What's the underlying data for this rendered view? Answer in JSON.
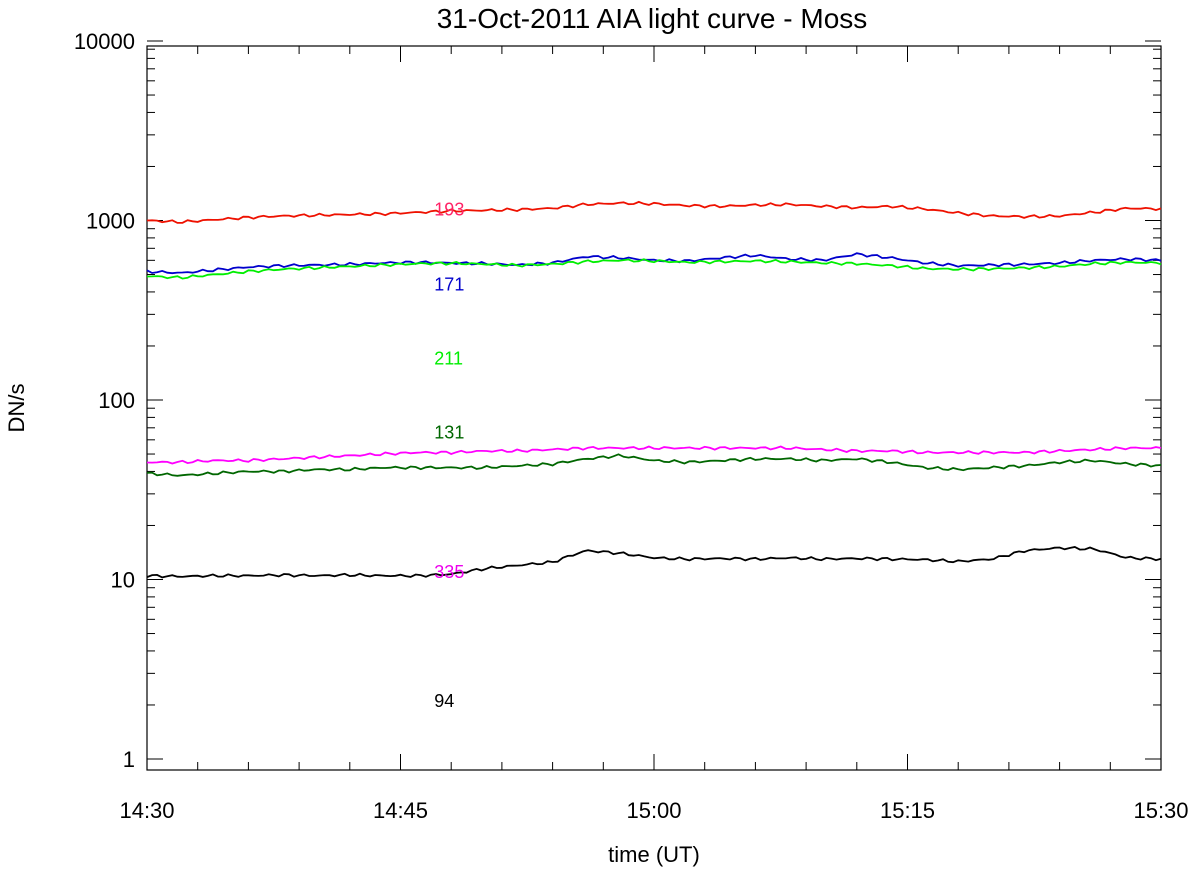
{
  "chart_data": {
    "type": "line",
    "title": "31-Oct-2011 AIA light curve - Moss",
    "xlabel": "time (UT)",
    "ylabel": "DN/s",
    "xlim": [
      "14:30",
      "15:30"
    ],
    "ylim": [
      1,
      10000
    ],
    "yscale": "log",
    "x_ticks": [
      "14:30",
      "14:45",
      "15:00",
      "15:15",
      "15:30"
    ],
    "y_ticks": [
      "1",
      "10",
      "100",
      "1000",
      "10000"
    ],
    "legend_labels_at": "14:47",
    "x": [
      "14:30",
      "14:32",
      "14:34",
      "14:36",
      "14:38",
      "14:40",
      "14:42",
      "14:44",
      "14:46",
      "14:48",
      "14:50",
      "14:52",
      "14:54",
      "14:56",
      "14:58",
      "15:00",
      "15:02",
      "15:04",
      "15:06",
      "15:08",
      "15:10",
      "15:12",
      "15:14",
      "15:16",
      "15:18",
      "15:20",
      "15:22",
      "15:24",
      "15:26",
      "15:28",
      "15:30"
    ],
    "series": [
      {
        "name": "193",
        "color": "#ee1100",
        "label_color": "#ff2266",
        "label_value": 1150,
        "values": [
          1000,
          980,
          1010,
          1040,
          1060,
          1070,
          1080,
          1090,
          1110,
          1130,
          1140,
          1150,
          1170,
          1230,
          1250,
          1240,
          1210,
          1200,
          1220,
          1230,
          1200,
          1180,
          1200,
          1160,
          1100,
          1060,
          1050,
          1060,
          1110,
          1170,
          1160
        ]
      },
      {
        "name": "171",
        "color": "#0000cc",
        "label_color": "#0000cc",
        "label_value": 440,
        "values": [
          520,
          510,
          530,
          550,
          560,
          565,
          570,
          580,
          585,
          580,
          575,
          565,
          580,
          630,
          620,
          600,
          595,
          620,
          640,
          610,
          600,
          650,
          620,
          580,
          560,
          565,
          570,
          580,
          600,
          610,
          600
        ]
      },
      {
        "name": "211",
        "color": "#00ee00",
        "label_color": "#00ee00",
        "label_value": 170,
        "values": [
          490,
          480,
          500,
          520,
          535,
          545,
          555,
          565,
          575,
          578,
          572,
          562,
          572,
          590,
          600,
          595,
          585,
          590,
          595,
          590,
          580,
          575,
          560,
          540,
          535,
          538,
          545,
          555,
          575,
          585,
          580
        ]
      },
      {
        "name": "131",
        "color": "#006600",
        "label_color": "#006600",
        "label_value": 66,
        "values": [
          39,
          38,
          39,
          40,
          40,
          41,
          41,
          42,
          42,
          42,
          42,
          43,
          44,
          47,
          49,
          46,
          45,
          46,
          47,
          47,
          46,
          47,
          45,
          42,
          41,
          42,
          43,
          45,
          46,
          44,
          43
        ]
      },
      {
        "name": "335",
        "color": "#ff00ff",
        "label_color": "#ee00ee",
        "label_value": 11,
        "values": [
          45,
          45,
          46,
          46,
          47,
          48,
          49,
          50,
          51,
          51,
          52,
          52,
          53,
          54,
          54,
          54,
          54,
          54,
          54,
          54,
          53,
          52,
          52,
          51,
          51,
          51,
          51,
          52,
          53,
          54,
          54
        ]
      },
      {
        "name": "94",
        "color": "#000000",
        "label_color": "#000000",
        "label_value": 2.1,
        "values": [
          10.5,
          10.4,
          10.5,
          10.5,
          10.6,
          10.5,
          10.6,
          10.5,
          10.5,
          10.7,
          11.5,
          12.0,
          12.5,
          14.5,
          14.0,
          13.2,
          13.0,
          13.1,
          13.0,
          13.2,
          13.0,
          13.1,
          13.0,
          12.9,
          12.6,
          13.0,
          14.5,
          15.0,
          14.8,
          13.2,
          13.0
        ]
      }
    ]
  }
}
